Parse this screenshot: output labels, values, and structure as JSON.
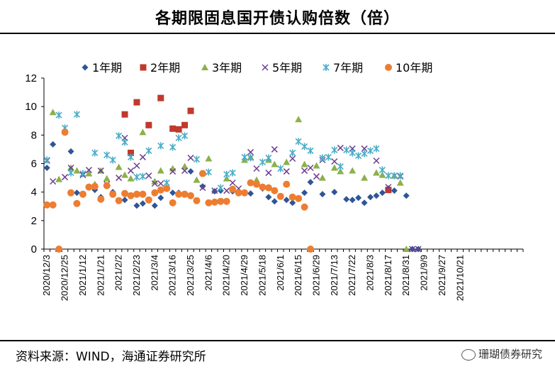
{
  "title": "各期限固息国开债认购倍数（倍）",
  "source": "资料来源：WIND，海通证券研究所",
  "watermark": "珊瑚债券研究",
  "chart_data": {
    "type": "scatter",
    "title": "各期限固息国开债认购倍数（倍）",
    "ylim": [
      0,
      12
    ],
    "yticks": [
      0,
      2,
      4,
      6,
      8,
      10,
      12
    ],
    "num_points": 80,
    "x_tick_labels": [
      {
        "index": 0,
        "label": "2020/12/3"
      },
      {
        "index": 3,
        "label": "2020/12/25"
      },
      {
        "index": 6,
        "label": "2021/1/12"
      },
      {
        "index": 9,
        "label": "2021/1/21"
      },
      {
        "index": 12,
        "label": "2021/2/2"
      },
      {
        "index": 15,
        "label": "2021/2/23"
      },
      {
        "index": 18,
        "label": "2021/3/4"
      },
      {
        "index": 21,
        "label": "2021/3/16"
      },
      {
        "index": 24,
        "label": "2021/3/25"
      },
      {
        "index": 27,
        "label": "2021/4/6"
      },
      {
        "index": 30,
        "label": "2021/4/20"
      },
      {
        "index": 33,
        "label": "2021/4/29"
      },
      {
        "index": 36,
        "label": "2021/5/18"
      },
      {
        "index": 39,
        "label": "2021/6/1"
      },
      {
        "index": 42,
        "label": "2021/6/15"
      },
      {
        "index": 45,
        "label": "2021/6/29"
      },
      {
        "index": 48,
        "label": "2021/7/13"
      },
      {
        "index": 51,
        "label": "2021/7/22"
      },
      {
        "index": 54,
        "label": "2021/8/3"
      },
      {
        "index": 57,
        "label": "2021/8/17"
      },
      {
        "index": 60,
        "label": "2021/8/31"
      },
      {
        "index": 63,
        "label": "2021/9/9"
      },
      {
        "index": 66,
        "label": "2021/9/27"
      },
      {
        "index": 69,
        "label": "2021/10/21"
      }
    ],
    "series": [
      {
        "name": "1年期",
        "marker": "diamond",
        "color": "#2E5597",
        "points": [
          [
            0,
            5.7
          ],
          [
            1,
            7.35
          ],
          [
            4,
            6.85
          ],
          [
            5,
            3.95
          ],
          [
            8,
            4.15
          ],
          [
            9,
            3.65
          ],
          [
            11,
            4.0
          ],
          [
            13,
            3.45
          ],
          [
            15,
            3.05
          ],
          [
            16,
            3.2
          ],
          [
            18,
            3.05
          ],
          [
            19,
            3.6
          ],
          [
            21,
            3.95
          ],
          [
            22,
            3.95
          ],
          [
            24,
            5.45
          ],
          [
            26,
            4.4
          ],
          [
            28,
            4.05
          ],
          [
            29,
            4.1
          ],
          [
            31,
            4.05
          ],
          [
            33,
            3.95
          ],
          [
            34,
            3.9
          ],
          [
            36,
            4.25
          ],
          [
            37,
            3.65
          ],
          [
            38,
            3.35
          ],
          [
            40,
            3.45
          ],
          [
            41,
            3.25
          ],
          [
            43,
            3.95
          ],
          [
            44,
            4.7
          ],
          [
            46,
            3.85
          ],
          [
            48,
            4.0
          ],
          [
            50,
            3.5
          ],
          [
            51,
            3.45
          ],
          [
            52,
            3.6
          ],
          [
            53,
            3.25
          ],
          [
            54,
            3.65
          ],
          [
            55,
            3.75
          ],
          [
            56,
            3.95
          ],
          [
            57,
            4.25
          ],
          [
            58,
            4.1
          ],
          [
            60,
            3.75
          ],
          [
            61,
            0.0
          ],
          [
            62,
            0.0
          ]
        ]
      },
      {
        "name": "2年期",
        "marker": "square",
        "color": "#C0392B",
        "points": [
          [
            13,
            9.45
          ],
          [
            14,
            6.75
          ],
          [
            15,
            10.3
          ],
          [
            17,
            8.7
          ],
          [
            19,
            10.6
          ],
          [
            21,
            8.45
          ],
          [
            22,
            8.4
          ],
          [
            23,
            8.7
          ],
          [
            24,
            9.7
          ],
          [
            57,
            4.15
          ]
        ]
      },
      {
        "name": "3年期",
        "marker": "triangle",
        "color": "#8DB04A",
        "points": [
          [
            1,
            9.6
          ],
          [
            2,
            4.9
          ],
          [
            4,
            5.7
          ],
          [
            5,
            5.5
          ],
          [
            7,
            5.3
          ],
          [
            8,
            4.55
          ],
          [
            9,
            5.5
          ],
          [
            10,
            4.95
          ],
          [
            12,
            5.75
          ],
          [
            13,
            5.2
          ],
          [
            14,
            4.95
          ],
          [
            16,
            8.2
          ],
          [
            18,
            4.75
          ],
          [
            19,
            5.5
          ],
          [
            21,
            5.65
          ],
          [
            23,
            5.8
          ],
          [
            25,
            4.85
          ],
          [
            27,
            6.35
          ],
          [
            30,
            4.95
          ],
          [
            33,
            6.25
          ],
          [
            34,
            6.45
          ],
          [
            35,
            4.85
          ],
          [
            37,
            6.25
          ],
          [
            38,
            5.95
          ],
          [
            40,
            6.1
          ],
          [
            42,
            9.1
          ],
          [
            43,
            5.95
          ],
          [
            45,
            5.85
          ],
          [
            46,
            5.0
          ],
          [
            48,
            5.7
          ],
          [
            49,
            5.45
          ],
          [
            51,
            5.5
          ],
          [
            53,
            5.0
          ],
          [
            55,
            5.35
          ],
          [
            56,
            5.2
          ],
          [
            58,
            5.15
          ],
          [
            59,
            4.65
          ],
          [
            60,
            0.0
          ]
        ]
      },
      {
        "name": "5年期",
        "marker": "cross",
        "color": "#6C3F8E",
        "points": [
          [
            0,
            6.2
          ],
          [
            1,
            4.75
          ],
          [
            3,
            5.05
          ],
          [
            4,
            5.7
          ],
          [
            6,
            5.2
          ],
          [
            7,
            5.55
          ],
          [
            9,
            5.5
          ],
          [
            10,
            4.55
          ],
          [
            12,
            5.0
          ],
          [
            13,
            7.8
          ],
          [
            14,
            5.5
          ],
          [
            15,
            5.85
          ],
          [
            16,
            6.45
          ],
          [
            17,
            5.15
          ],
          [
            18,
            4.6
          ],
          [
            19,
            4.6
          ],
          [
            21,
            5.45
          ],
          [
            23,
            5.5
          ],
          [
            24,
            6.4
          ],
          [
            26,
            4.3
          ],
          [
            28,
            4.1
          ],
          [
            30,
            4.1
          ],
          [
            31,
            4.65
          ],
          [
            32,
            4.25
          ],
          [
            34,
            6.8
          ],
          [
            35,
            5.65
          ],
          [
            37,
            5.35
          ],
          [
            38,
            7.0
          ],
          [
            40,
            5.45
          ],
          [
            41,
            6.35
          ],
          [
            43,
            5.5
          ],
          [
            44,
            5.7
          ],
          [
            45,
            5.1
          ],
          [
            46,
            6.25
          ],
          [
            48,
            6.15
          ],
          [
            49,
            7.1
          ],
          [
            51,
            7.05
          ],
          [
            53,
            7.05
          ],
          [
            55,
            6.2
          ],
          [
            57,
            4.35
          ],
          [
            59,
            5.1
          ],
          [
            61,
            0.0
          ],
          [
            62,
            0.0
          ]
        ]
      },
      {
        "name": "7年期",
        "marker": "star",
        "color": "#4BACC6",
        "points": [
          [
            0,
            6.25
          ],
          [
            2,
            9.4
          ],
          [
            3,
            8.5
          ],
          [
            4,
            5.35
          ],
          [
            5,
            9.45
          ],
          [
            6,
            5.3
          ],
          [
            8,
            6.75
          ],
          [
            10,
            6.6
          ],
          [
            11,
            6.25
          ],
          [
            12,
            7.95
          ],
          [
            13,
            7.5
          ],
          [
            14,
            6.45
          ],
          [
            15,
            5.05
          ],
          [
            16,
            5.1
          ],
          [
            17,
            6.9
          ],
          [
            19,
            7.25
          ],
          [
            20,
            4.65
          ],
          [
            21,
            7.15
          ],
          [
            22,
            7.8
          ],
          [
            23,
            7.95
          ],
          [
            25,
            6.3
          ],
          [
            27,
            5.4
          ],
          [
            29,
            4.3
          ],
          [
            30,
            5.25
          ],
          [
            31,
            5.35
          ],
          [
            33,
            6.45
          ],
          [
            34,
            6.4
          ],
          [
            36,
            6.1
          ],
          [
            37,
            6.4
          ],
          [
            39,
            5.65
          ],
          [
            41,
            6.75
          ],
          [
            42,
            7.55
          ],
          [
            43,
            7.2
          ],
          [
            44,
            6.9
          ],
          [
            46,
            6.4
          ],
          [
            47,
            6.45
          ],
          [
            48,
            6.95
          ],
          [
            49,
            5.8
          ],
          [
            50,
            6.95
          ],
          [
            51,
            6.75
          ],
          [
            52,
            6.55
          ],
          [
            53,
            6.7
          ],
          [
            54,
            6.9
          ],
          [
            55,
            7.05
          ],
          [
            56,
            5.55
          ],
          [
            57,
            5.15
          ],
          [
            58,
            5.15
          ],
          [
            59,
            5.15
          ]
        ]
      },
      {
        "name": "10年期",
        "marker": "circle",
        "color": "#ED7D31",
        "points": [
          [
            0,
            3.1
          ],
          [
            1,
            3.1
          ],
          [
            2,
            0.0
          ],
          [
            3,
            8.2
          ],
          [
            4,
            3.95
          ],
          [
            5,
            3.2
          ],
          [
            6,
            3.85
          ],
          [
            7,
            4.35
          ],
          [
            8,
            4.4
          ],
          [
            9,
            3.5
          ],
          [
            10,
            4.45
          ],
          [
            11,
            3.85
          ],
          [
            12,
            3.4
          ],
          [
            13,
            3.9
          ],
          [
            14,
            3.75
          ],
          [
            15,
            3.85
          ],
          [
            16,
            3.85
          ],
          [
            17,
            3.45
          ],
          [
            18,
            3.95
          ],
          [
            19,
            4.15
          ],
          [
            20,
            4.25
          ],
          [
            21,
            3.25
          ],
          [
            22,
            3.85
          ],
          [
            23,
            3.85
          ],
          [
            24,
            3.75
          ],
          [
            25,
            3.4
          ],
          [
            26,
            5.3
          ],
          [
            27,
            3.25
          ],
          [
            28,
            3.3
          ],
          [
            29,
            3.35
          ],
          [
            30,
            3.35
          ],
          [
            31,
            4.2
          ],
          [
            32,
            3.95
          ],
          [
            33,
            3.95
          ],
          [
            34,
            4.65
          ],
          [
            35,
            4.55
          ],
          [
            36,
            4.35
          ],
          [
            37,
            4.3
          ],
          [
            38,
            4.1
          ],
          [
            39,
            3.7
          ],
          [
            40,
            4.55
          ],
          [
            41,
            3.65
          ],
          [
            42,
            3.55
          ],
          [
            43,
            2.95
          ],
          [
            44,
            0.0
          ]
        ]
      }
    ]
  }
}
